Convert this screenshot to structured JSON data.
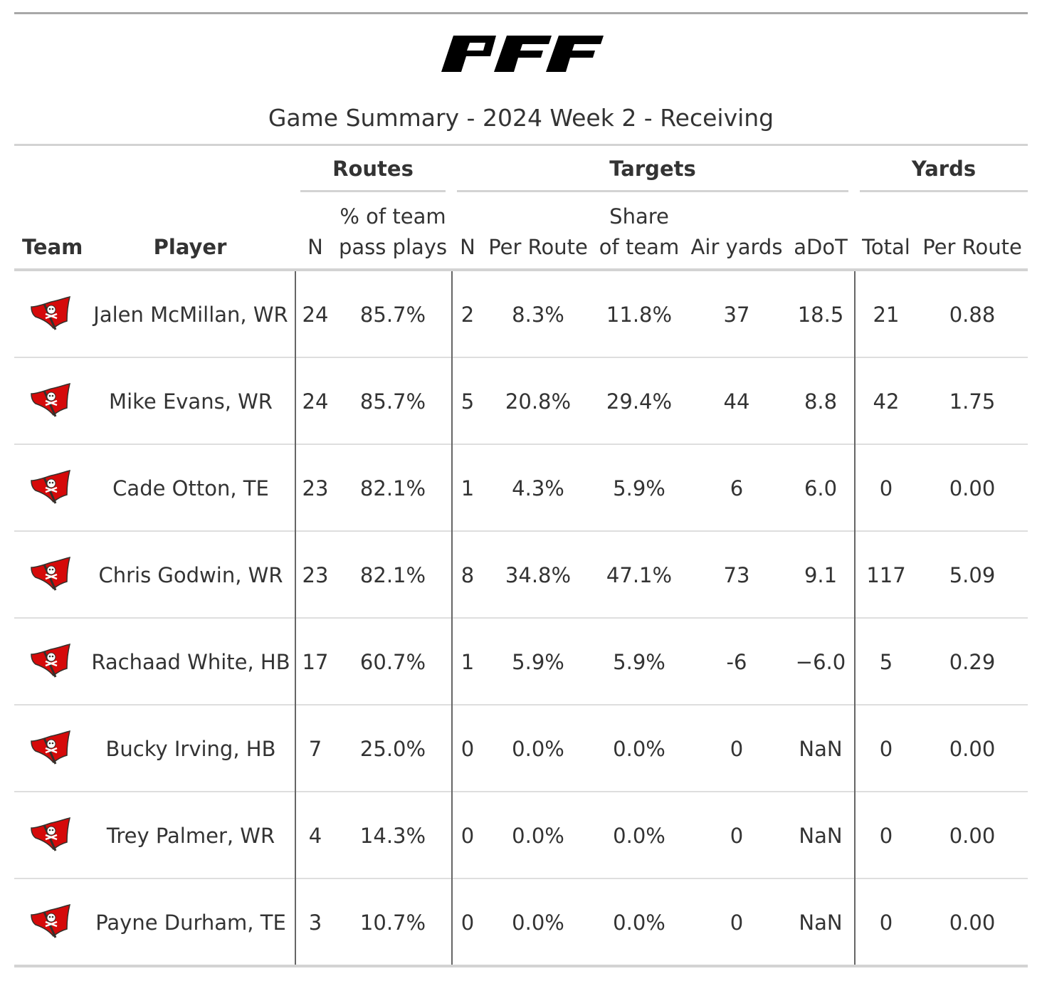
{
  "header": {
    "logo_text": "PFF",
    "title": "Game Summary - 2024 Week 2 - Receiving"
  },
  "spanners": {
    "routes": "Routes",
    "targets": "Targets",
    "yards": "Yards"
  },
  "columns": {
    "team": "Team",
    "player": "Player",
    "routes_n": "N",
    "routes_pct_line1": "% of team",
    "routes_pct_line2": "pass plays",
    "targets_n": "N",
    "targets_per_route": "Per Route",
    "targets_share_line1": "Share",
    "targets_share_line2": "of team",
    "air_yards": "Air yards",
    "adot": "aDoT",
    "yards_total": "Total",
    "yards_per_route": "Per Route"
  },
  "team_logo": "buccaneers-flag-icon",
  "colors": {
    "flag_red": "#d50a0a",
    "pewter": "#34302b",
    "rule_gray": "#d3d3d3"
  },
  "rows": [
    {
      "player": "Jalen McMillan, WR",
      "routes_n": "24",
      "routes_pct": "85.7%",
      "targets_n": "2",
      "per_route": "8.3%",
      "share": "11.8%",
      "air_yards": "37",
      "adot": "18.5",
      "yards_total": "21",
      "yards_per_route": "0.88"
    },
    {
      "player": "Mike Evans, WR",
      "routes_n": "24",
      "routes_pct": "85.7%",
      "targets_n": "5",
      "per_route": "20.8%",
      "share": "29.4%",
      "air_yards": "44",
      "adot": "8.8",
      "yards_total": "42",
      "yards_per_route": "1.75"
    },
    {
      "player": "Cade Otton, TE",
      "routes_n": "23",
      "routes_pct": "82.1%",
      "targets_n": "1",
      "per_route": "4.3%",
      "share": "5.9%",
      "air_yards": "6",
      "adot": "6.0",
      "yards_total": "0",
      "yards_per_route": "0.00"
    },
    {
      "player": "Chris Godwin, WR",
      "routes_n": "23",
      "routes_pct": "82.1%",
      "targets_n": "8",
      "per_route": "34.8%",
      "share": "47.1%",
      "air_yards": "73",
      "adot": "9.1",
      "yards_total": "117",
      "yards_per_route": "5.09"
    },
    {
      "player": "Rachaad White, HB",
      "routes_n": "17",
      "routes_pct": "60.7%",
      "targets_n": "1",
      "per_route": "5.9%",
      "share": "5.9%",
      "air_yards": "-6",
      "adot": "−6.0",
      "yards_total": "5",
      "yards_per_route": "0.29"
    },
    {
      "player": "Bucky Irving, HB",
      "routes_n": "7",
      "routes_pct": "25.0%",
      "targets_n": "0",
      "per_route": "0.0%",
      "share": "0.0%",
      "air_yards": "0",
      "adot": "NaN",
      "yards_total": "0",
      "yards_per_route": "0.00"
    },
    {
      "player": "Trey Palmer, WR",
      "routes_n": "4",
      "routes_pct": "14.3%",
      "targets_n": "0",
      "per_route": "0.0%",
      "share": "0.0%",
      "air_yards": "0",
      "adot": "NaN",
      "yards_total": "0",
      "yards_per_route": "0.00"
    },
    {
      "player": "Payne Durham, TE",
      "routes_n": "3",
      "routes_pct": "10.7%",
      "targets_n": "0",
      "per_route": "0.0%",
      "share": "0.0%",
      "air_yards": "0",
      "adot": "NaN",
      "yards_total": "0",
      "yards_per_route": "0.00"
    }
  ]
}
